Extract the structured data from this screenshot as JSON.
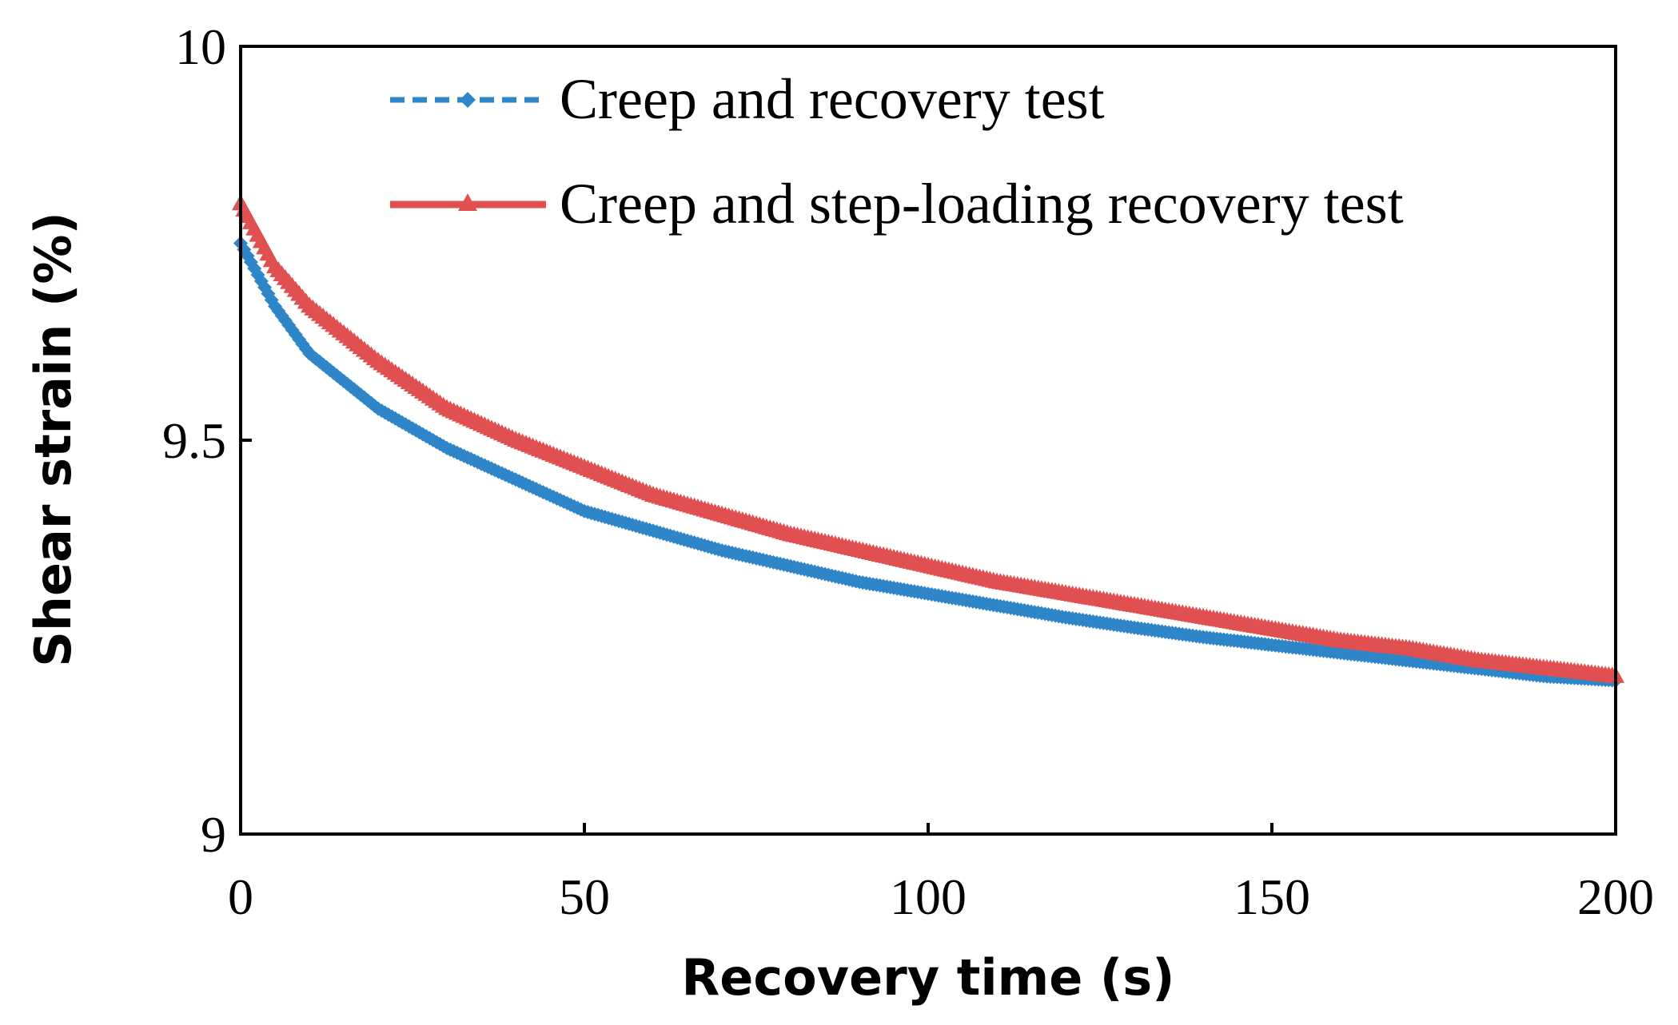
{
  "chart_data": {
    "type": "line",
    "title": "",
    "xlabel": "Recovery time (s)",
    "ylabel": "Shear strain (%)",
    "xlim": [
      0,
      200
    ],
    "ylim": [
      9,
      10
    ],
    "xticks": [
      0,
      50,
      100,
      150,
      200
    ],
    "xtick_labels": [
      "0",
      "50",
      "100",
      "150",
      "200"
    ],
    "yticks": [
      9,
      9.5,
      10
    ],
    "ytick_labels": [
      "9",
      "9.5",
      "10"
    ],
    "grid": false,
    "legend_position": "top-right",
    "series": [
      {
        "name": "Creep and recovery test",
        "color": "#2E86C8",
        "line_style": "dashed",
        "marker": "diamond",
        "x": [
          0,
          5,
          10,
          20,
          30,
          40,
          50,
          60,
          70,
          80,
          90,
          100,
          110,
          120,
          130,
          140,
          150,
          160,
          170,
          180,
          190,
          200
        ],
        "y": [
          9.75,
          9.67,
          9.61,
          9.54,
          9.49,
          9.45,
          9.41,
          9.385,
          9.36,
          9.34,
          9.32,
          9.305,
          9.29,
          9.275,
          9.262,
          9.25,
          9.24,
          9.23,
          9.22,
          9.21,
          9.2,
          9.195
        ]
      },
      {
        "name": "Creep and step-loading recovery test",
        "color": "#E05050",
        "line_style": "solid",
        "marker": "triangle",
        "x": [
          0,
          5,
          10,
          20,
          30,
          40,
          50,
          60,
          70,
          80,
          90,
          100,
          110,
          120,
          130,
          140,
          150,
          160,
          170,
          180,
          190,
          200
        ],
        "y": [
          9.8,
          9.72,
          9.67,
          9.6,
          9.54,
          9.5,
          9.465,
          9.43,
          9.405,
          9.38,
          9.36,
          9.34,
          9.32,
          9.305,
          9.29,
          9.275,
          9.26,
          9.245,
          9.235,
          9.22,
          9.21,
          9.2
        ]
      }
    ]
  }
}
